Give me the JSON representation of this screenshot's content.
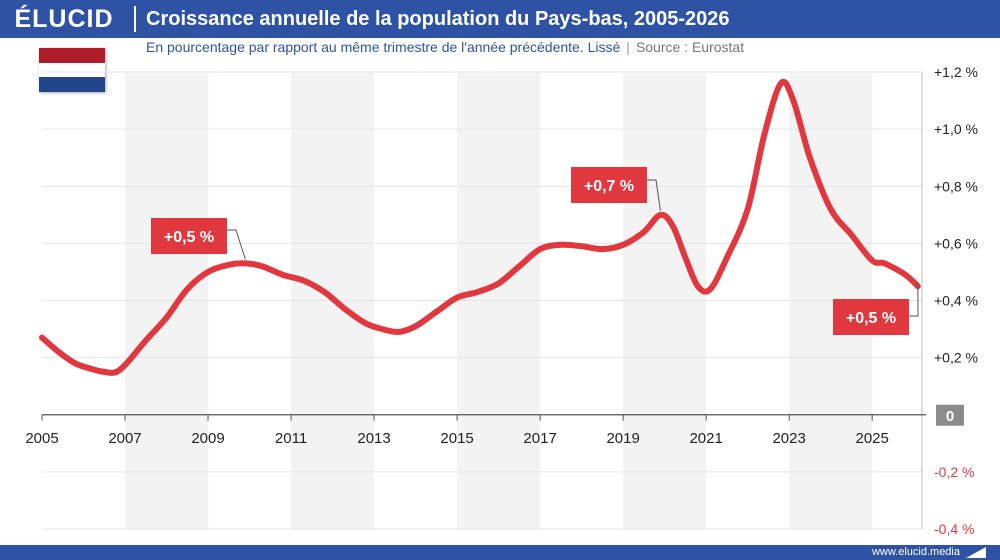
{
  "header": {
    "logo": "ÉLUCID",
    "title": "Croissance annuelle de la population du Pays-bas, 2005-2026",
    "subtitle": "En pourcentage par rapport au même trimestre de l'année précédente. Lissé",
    "separator": "|",
    "source": "Source : Eurostat"
  },
  "footer": {
    "url": "www.elucid.media"
  },
  "flag": {
    "name": "netherlands-flag",
    "colors": [
      "#ae1c28",
      "#ffffff",
      "#21468b"
    ]
  },
  "colors": {
    "brand": "#2f53a4",
    "line": "#e0383e",
    "label_bg": "#e0383e",
    "band": "#f3f3f3",
    "negative_tick": "#e0383e",
    "zero_badge": "#8c8c8c"
  },
  "chart_data": {
    "type": "line",
    "title": "Croissance annuelle de la population du Pays-bas, 2005-2026",
    "xlim": [
      2005,
      2026.2
    ],
    "ylim": [
      -0.4,
      1.2
    ],
    "x_ticks": [
      {
        "value": 2005,
        "label": "2005"
      },
      {
        "value": 2007,
        "label": "2007"
      },
      {
        "value": 2009,
        "label": "2009"
      },
      {
        "value": 2011,
        "label": "2011"
      },
      {
        "value": 2013,
        "label": "2013"
      },
      {
        "value": 2015,
        "label": "2015"
      },
      {
        "value": 2017,
        "label": "2017"
      },
      {
        "value": 2019,
        "label": "2019"
      },
      {
        "value": 2021,
        "label": "2021"
      },
      {
        "value": 2023,
        "label": "2023"
      },
      {
        "value": 2025,
        "label": "2025"
      }
    ],
    "y_ticks": [
      {
        "value": 1.2,
        "label": "+1,2 %"
      },
      {
        "value": 1.0,
        "label": "+1,0 %"
      },
      {
        "value": 0.8,
        "label": "+0,8 %"
      },
      {
        "value": 0.6,
        "label": "+0,6 %"
      },
      {
        "value": 0.4,
        "label": "+0,4 %"
      },
      {
        "value": 0.2,
        "label": "+0,2 %"
      },
      {
        "value": 0,
        "label": "0"
      },
      {
        "value": -0.2,
        "label": "-0,2 %"
      },
      {
        "value": -0.4,
        "label": "-0,4 %"
      }
    ],
    "series": [
      {
        "points": [
          [
            2005.0,
            0.27
          ],
          [
            2005.4,
            0.22
          ],
          [
            2005.8,
            0.18
          ],
          [
            2006.2,
            0.16
          ],
          [
            2006.5,
            0.15
          ],
          [
            2006.8,
            0.15
          ],
          [
            2007.1,
            0.19
          ],
          [
            2007.5,
            0.26
          ],
          [
            2008.0,
            0.34
          ],
          [
            2008.5,
            0.44
          ],
          [
            2009.0,
            0.5
          ],
          [
            2009.5,
            0.525
          ],
          [
            2009.9,
            0.53
          ],
          [
            2010.3,
            0.52
          ],
          [
            2010.8,
            0.49
          ],
          [
            2011.3,
            0.47
          ],
          [
            2011.8,
            0.43
          ],
          [
            2012.3,
            0.37
          ],
          [
            2012.8,
            0.32
          ],
          [
            2013.2,
            0.3
          ],
          [
            2013.6,
            0.29
          ],
          [
            2014.0,
            0.31
          ],
          [
            2014.5,
            0.36
          ],
          [
            2015.0,
            0.41
          ],
          [
            2015.5,
            0.43
          ],
          [
            2016.0,
            0.46
          ],
          [
            2016.5,
            0.52
          ],
          [
            2017.0,
            0.58
          ],
          [
            2017.5,
            0.595
          ],
          [
            2018.0,
            0.59
          ],
          [
            2018.5,
            0.58
          ],
          [
            2019.0,
            0.595
          ],
          [
            2019.5,
            0.64
          ],
          [
            2019.9,
            0.7
          ],
          [
            2020.2,
            0.66
          ],
          [
            2020.5,
            0.55
          ],
          [
            2020.8,
            0.45
          ],
          [
            2021.1,
            0.44
          ],
          [
            2021.5,
            0.55
          ],
          [
            2022.0,
            0.72
          ],
          [
            2022.4,
            0.98
          ],
          [
            2022.8,
            1.16
          ],
          [
            2023.1,
            1.1
          ],
          [
            2023.5,
            0.9
          ],
          [
            2024.0,
            0.72
          ],
          [
            2024.5,
            0.63
          ],
          [
            2025.0,
            0.54
          ],
          [
            2025.3,
            0.53
          ],
          [
            2025.8,
            0.49
          ],
          [
            2026.1,
            0.45
          ]
        ]
      }
    ],
    "annotations": [
      {
        "text": "+0,5 %",
        "x": 2009.9,
        "y": 0.53
      },
      {
        "text": "+0,7 %",
        "x": 2019.9,
        "y": 0.7
      },
      {
        "text": "+0,5 %",
        "x": 2026.1,
        "y": 0.45
      }
    ],
    "grid": true
  }
}
